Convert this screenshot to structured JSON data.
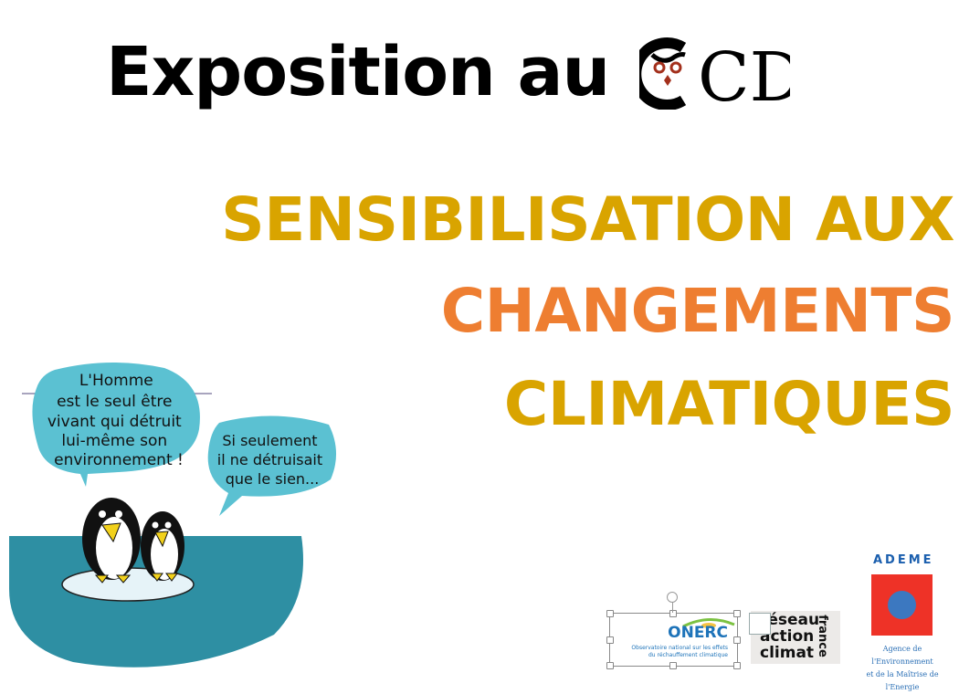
{
  "header": {
    "title": "Exposition au",
    "logo_text": "CDI"
  },
  "headline": {
    "line1": "SENSIBILISATION AUX",
    "line2": "CHANGEMENTS",
    "line3": "CLIMATIQUES",
    "colors": {
      "yellow": "#D9A400",
      "orange": "#EE7E31"
    }
  },
  "cartoon": {
    "bubble1": [
      "L'Homme",
      "est le seul être",
      "vivant qui détruit",
      "lui-même son",
      "environnement !"
    ],
    "bubble2": [
      "Si seulement",
      "il ne détruisait",
      "que le sien..."
    ],
    "colors": {
      "bubble": "#5BC1D2",
      "water": "#2E8FA3"
    }
  },
  "logos": {
    "onerc": {
      "name": "ONERC",
      "subtitle1": "Observatoire national sur les effets",
      "subtitle2": "du réchauffement climatique"
    },
    "rac": {
      "line1": "réseau",
      "line2": "action",
      "line3": "climat",
      "side": "france"
    },
    "ademe": {
      "title": "ADEME",
      "desc1": "Agence de l'Environnement",
      "desc2": "et de la Maîtrise de l'Energie"
    }
  }
}
